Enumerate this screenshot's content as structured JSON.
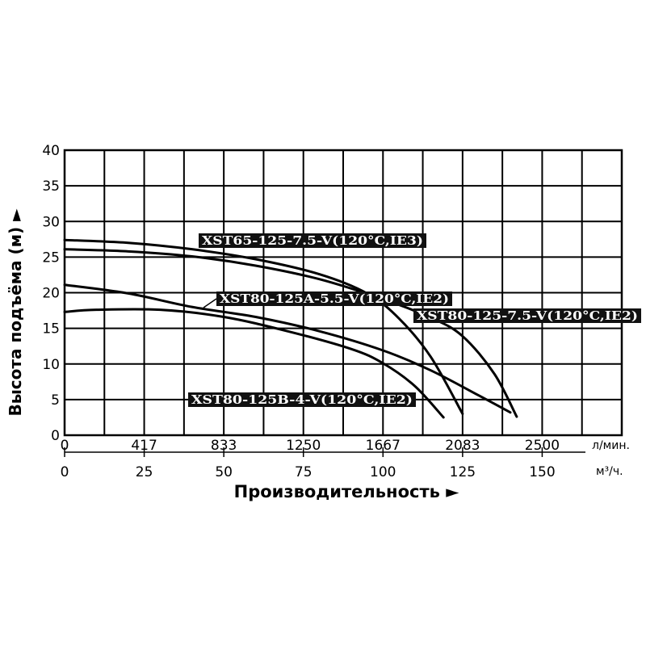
{
  "chart_data": {
    "type": "line",
    "ylabel": "Высота подъёма (м) ►",
    "xlabel": "Производительность ►",
    "x_unit": "м³/ч.",
    "x2_unit": "л/мин.",
    "xlim": [
      0,
      175
    ],
    "ylim": [
      0,
      40
    ],
    "grid": true,
    "x_ticks": [
      0,
      25,
      50,
      75,
      100,
      125,
      150
    ],
    "x2_ticks": [
      "0",
      "417",
      "833",
      "1250",
      "1667",
      "2083",
      "2500"
    ],
    "y_ticks": [
      0,
      5,
      10,
      15,
      20,
      25,
      30,
      35,
      40
    ],
    "series": [
      {
        "name": "XST65-125-7.5-V(120°C,IE3)",
        "x": [
          0,
          20,
          40,
          60,
          80,
          95,
          105,
          115,
          125
        ],
        "y": [
          27.4,
          27.0,
          26.1,
          24.7,
          22.6,
          19.9,
          16.4,
          11.0,
          3.0
        ]
      },
      {
        "name": "XST80-125-7.5-V(120°C,IE2)",
        "x": [
          0,
          20,
          40,
          60,
          80,
          100,
          115,
          125,
          135,
          142
        ],
        "y": [
          26.1,
          25.8,
          25.1,
          23.8,
          21.9,
          19.1,
          16.5,
          13.9,
          8.6,
          2.6
        ]
      },
      {
        "name": "XST80-125A-5.5-V(120°C,IE2)",
        "x": [
          0,
          20,
          40,
          60,
          80,
          100,
          115,
          130,
          140
        ],
        "y": [
          21.1,
          19.9,
          18.0,
          16.6,
          14.6,
          11.9,
          9.1,
          5.6,
          3.2
        ]
      },
      {
        "name": "XST80-125B-4-V(120°C,IE2)",
        "x": [
          0,
          10,
          30,
          50,
          70,
          90,
          100,
          110,
          119
        ],
        "y": [
          17.3,
          17.6,
          17.6,
          16.6,
          14.6,
          12.1,
          10.1,
          6.9,
          2.5
        ]
      }
    ]
  }
}
